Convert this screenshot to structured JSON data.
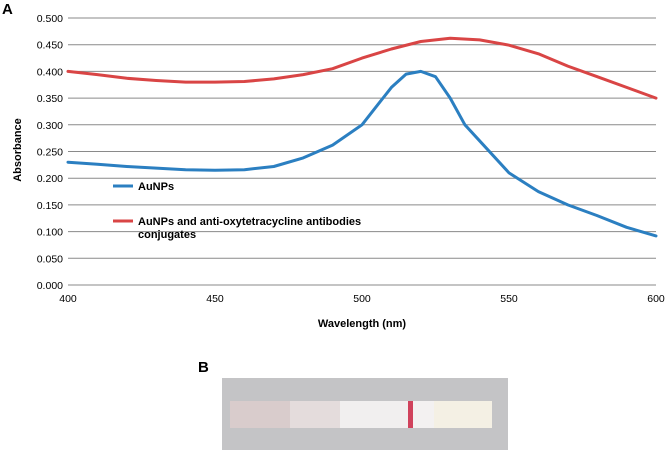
{
  "panel_a_label": "A",
  "panel_b_label": "B",
  "colors": {
    "series_1": "#2b7fc1",
    "series_2": "#d94545",
    "grid": "#8a8a8a"
  },
  "chart_data": {
    "type": "line",
    "xlabel": "Wavelength (nm)",
    "ylabel": "Absorbance",
    "xlim": [
      400,
      600
    ],
    "ylim": [
      0,
      0.5
    ],
    "x_ticks": [
      "400",
      "450",
      "500",
      "550",
      "600"
    ],
    "y_ticks": [
      "0.000",
      "0.050",
      "0.100",
      "0.150",
      "0.200",
      "0.250",
      "0.300",
      "0.350",
      "0.400",
      "0.450",
      "0.500"
    ],
    "grid": "horizontal",
    "legend_position": "inside-left",
    "series": [
      {
        "name": "AuNPs",
        "color": "#2b7fc1",
        "x": [
          400,
          410,
          420,
          430,
          440,
          450,
          460,
          470,
          480,
          490,
          500,
          505,
          510,
          515,
          520,
          525,
          530,
          535,
          540,
          550,
          560,
          570,
          580,
          590,
          600
        ],
        "y": [
          0.23,
          0.226,
          0.222,
          0.219,
          0.216,
          0.215,
          0.216,
          0.222,
          0.238,
          0.262,
          0.3,
          0.335,
          0.37,
          0.395,
          0.4,
          0.39,
          0.35,
          0.3,
          0.27,
          0.21,
          0.175,
          0.15,
          0.13,
          0.108,
          0.092
        ]
      },
      {
        "name": "AuNPs and anti-oxytetracycline antibodies conjugates",
        "color": "#d94545",
        "x": [
          400,
          410,
          420,
          430,
          440,
          450,
          460,
          470,
          480,
          490,
          500,
          510,
          520,
          530,
          540,
          550,
          560,
          570,
          580,
          590,
          600
        ],
        "y": [
          0.4,
          0.394,
          0.387,
          0.383,
          0.38,
          0.38,
          0.381,
          0.386,
          0.394,
          0.405,
          0.425,
          0.442,
          0.456,
          0.462,
          0.459,
          0.449,
          0.433,
          0.41,
          0.39,
          0.37,
          0.35
        ]
      }
    ]
  },
  "strip": {
    "segments": [
      {
        "name": "sample-pad",
        "color": "#d9cccc"
      },
      {
        "name": "conjugate-pad",
        "color": "#e4dcdc"
      },
      {
        "name": "membrane",
        "color": "#f1efef"
      },
      {
        "name": "test-line",
        "color": "#d0425c"
      },
      {
        "name": "membrane-end",
        "color": "#f3f1f1"
      },
      {
        "name": "absorbent-pad",
        "color": "#f4f0e4"
      }
    ]
  }
}
